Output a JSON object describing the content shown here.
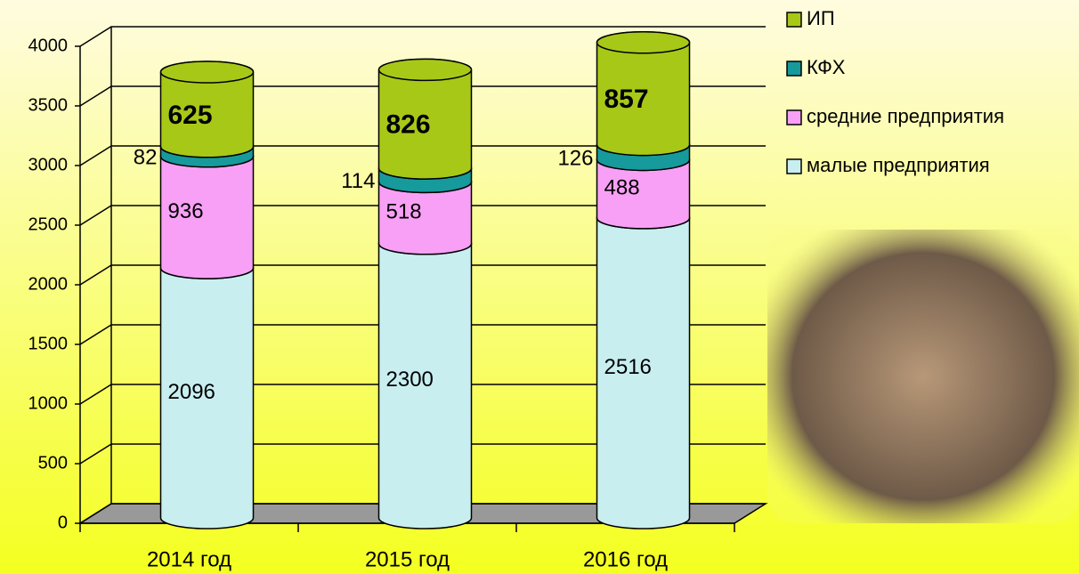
{
  "chart_data": {
    "type": "bar",
    "stacked": true,
    "categories": [
      "2014 год",
      "2015 год",
      "2016 год"
    ],
    "series": [
      {
        "name": "малые предприятия",
        "color": "#c8eef0",
        "values": [
          2096,
          2300,
          2516
        ]
      },
      {
        "name": "средние предприятия",
        "color": "#f7a0f5",
        "values": [
          936,
          518,
          488
        ]
      },
      {
        "name": "КФХ",
        "color": "#169a9c",
        "values": [
          82,
          114,
          126
        ]
      },
      {
        "name": "ИП",
        "color": "#a8c818",
        "values": [
          625,
          826,
          857
        ]
      }
    ],
    "ylim": [
      0,
      4000
    ],
    "yticks": [
      0,
      500,
      1000,
      1500,
      2000,
      2500,
      3000,
      3500,
      4000
    ],
    "grid": true
  }
}
